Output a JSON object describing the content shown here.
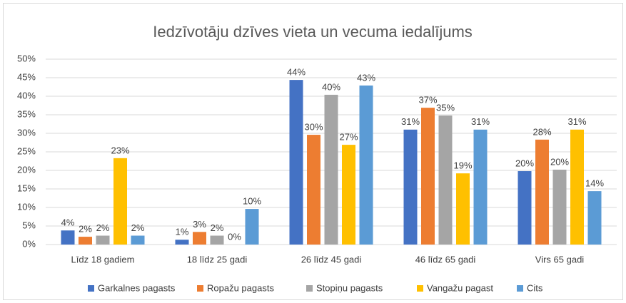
{
  "chart_data": {
    "type": "bar",
    "title": "Iedzīvotāju dzīves vieta un vecuma iedalījums",
    "categories": [
      "Līdz 18 gadiem",
      "18 līdz 25 gadi",
      "26 līdz 45 gadi",
      "46 līdz 65 gadi",
      "Virs 65 gadi"
    ],
    "series": [
      {
        "name": "Garkalnes pagasts",
        "color": "#4472c4",
        "values": [
          3.8,
          1.3,
          44.4,
          31.0,
          19.8
        ],
        "value_labels": [
          "4%",
          "1%",
          "44%",
          "31%",
          "20%"
        ]
      },
      {
        "name": "Ropažu pagasts",
        "color": "#ed7d31",
        "values": [
          2.1,
          3.4,
          29.6,
          36.9,
          28.3
        ],
        "value_labels": [
          "2%",
          "3%",
          "30%",
          "37%",
          "28%"
        ]
      },
      {
        "name": "Stopiņu pagasts",
        "color": "#a5a5a5",
        "values": [
          2.4,
          2.4,
          40.4,
          34.8,
          20.2
        ],
        "value_labels": [
          "2%",
          "2%",
          "40%",
          "35%",
          "20%"
        ]
      },
      {
        "name": "Vangažu pagast",
        "color": "#ffc000",
        "values": [
          23.3,
          0,
          26.9,
          19.2,
          31.0
        ],
        "value_labels": [
          "23%",
          "0%",
          "27%",
          "19%",
          "31%"
        ]
      },
      {
        "name": "Cits",
        "color": "#5b9bd5",
        "values": [
          2.4,
          9.6,
          42.9,
          31.0,
          14.4
        ],
        "value_labels": [
          "2%",
          "10%",
          "43%",
          "31%",
          "14%"
        ]
      }
    ],
    "ylim": [
      0,
      50
    ],
    "yticks": [
      {
        "value": 0,
        "label": "0%"
      },
      {
        "value": 5,
        "label": "5%"
      },
      {
        "value": 10,
        "label": "10%"
      },
      {
        "value": 15,
        "label": "15%"
      },
      {
        "value": 20,
        "label": "20%"
      },
      {
        "value": 25,
        "label": "25%"
      },
      {
        "value": 30,
        "label": "30%"
      },
      {
        "value": 35,
        "label": "35%"
      },
      {
        "value": 40,
        "label": "40%"
      },
      {
        "value": 45,
        "label": "45%"
      },
      {
        "value": 50,
        "label": "50%"
      }
    ],
    "grid": true,
    "legend": "bottom"
  }
}
